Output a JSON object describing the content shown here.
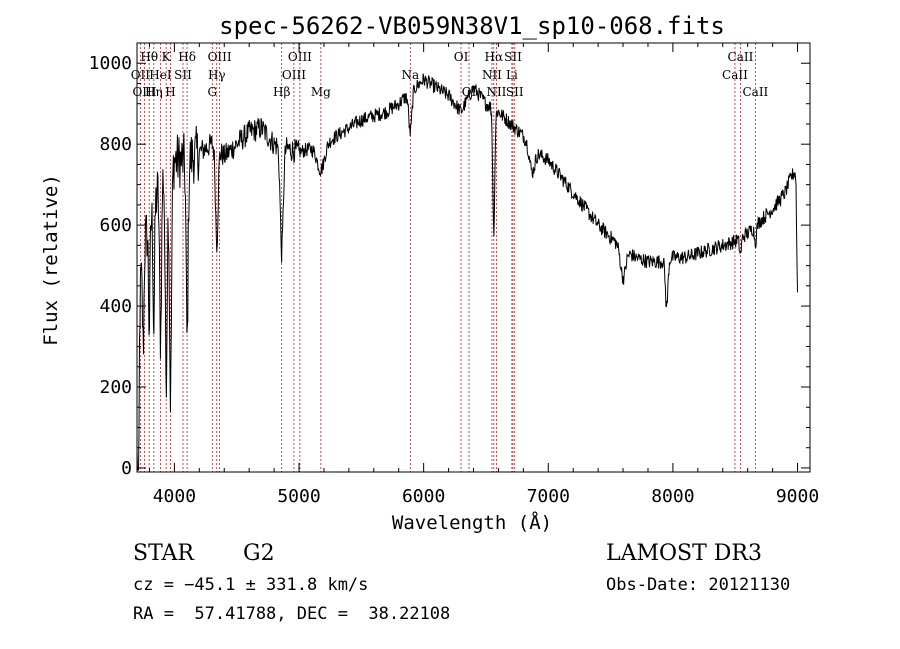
{
  "chart_data": {
    "type": "line",
    "title": "spec-56262-VB059N38V1_sp10-068.fits",
    "xlabel": "Wavelength (Å)",
    "ylabel": "Flux (relative)",
    "xlim": [
      3700,
      9100
    ],
    "ylim": [
      -10,
      1050
    ],
    "x_ticks": [
      4000,
      5000,
      6000,
      7000,
      8000,
      9000
    ],
    "y_ticks": [
      0,
      200,
      400,
      600,
      800,
      1000
    ],
    "x_tick_labels": [
      "4000",
      "5000",
      "6000",
      "7000",
      "8000",
      "9000"
    ],
    "y_tick_labels": [
      "0",
      "200",
      "400",
      "600",
      "800",
      "1000"
    ],
    "continuum": {
      "x": [
        3700,
        3720,
        3760,
        3800,
        3850,
        3900,
        3950,
        4000,
        4100,
        4200,
        4300,
        4400,
        4500,
        4600,
        4700,
        4800,
        4900,
        5000,
        5100,
        5200,
        5300,
        5400,
        5500,
        5600,
        5700,
        5800,
        5900,
        6000,
        6100,
        6200,
        6300,
        6400,
        6500,
        6600,
        6700,
        6800,
        6900,
        7000,
        7100,
        7200,
        7300,
        7400,
        7500,
        7600,
        7700,
        7800,
        7900,
        8000,
        8100,
        8200,
        8300,
        8400,
        8500,
        8600,
        8700,
        8800,
        8900,
        8950,
        9000
      ],
      "y": [
        150,
        420,
        560,
        600,
        660,
        740,
        720,
        760,
        760,
        780,
        800,
        770,
        800,
        830,
        840,
        800,
        790,
        780,
        790,
        800,
        820,
        840,
        860,
        870,
        880,
        900,
        930,
        960,
        940,
        920,
        880,
        940,
        900,
        880,
        850,
        820,
        780,
        760,
        720,
        680,
        640,
        600,
        570,
        540,
        520,
        510,
        510,
        520,
        520,
        530,
        540,
        550,
        560,
        580,
        610,
        640,
        680,
        720,
        740
      ]
    },
    "absorption": [
      {
        "x": 3710,
        "depth": 500,
        "width": 6
      },
      {
        "x": 3750,
        "depth": 220,
        "width": 6
      },
      {
        "x": 3798,
        "depth": 250,
        "width": 6
      },
      {
        "x": 3835,
        "depth": 300,
        "width": 6
      },
      {
        "x": 3889,
        "depth": 400,
        "width": 8
      },
      {
        "x": 3934,
        "depth": 500,
        "width": 8
      },
      {
        "x": 3969,
        "depth": 560,
        "width": 8
      },
      {
        "x": 4102,
        "depth": 450,
        "width": 8
      },
      {
        "x": 4340,
        "depth": 230,
        "width": 10
      },
      {
        "x": 4861,
        "depth": 260,
        "width": 12
      },
      {
        "x": 5175,
        "depth": 60,
        "width": 30
      },
      {
        "x": 5893,
        "depth": 100,
        "width": 12
      },
      {
        "x": 6563,
        "depth": 300,
        "width": 8
      },
      {
        "x": 6870,
        "depth": 60,
        "width": 20
      },
      {
        "x": 7600,
        "depth": 70,
        "width": 20
      },
      {
        "x": 7950,
        "depth": 120,
        "width": 10
      },
      {
        "x": 8542,
        "depth": 40,
        "width": 8
      },
      {
        "x": 8662,
        "depth": 40,
        "width": 8
      },
      {
        "x": 9000,
        "depth": 300,
        "width": 6
      }
    ],
    "lines": [
      {
        "label": "Hθ",
        "x": 3798,
        "row": 0
      },
      {
        "label": "OII",
        "x": 3727,
        "row": 1
      },
      {
        "label": "OIII",
        "x": 3760,
        "row": 2
      },
      {
        "label": "K",
        "x": 3934,
        "row": 0
      },
      {
        "label": "HeI",
        "x": 3888,
        "row": 1
      },
      {
        "label": "Hη",
        "x": 3835,
        "row": 2
      },
      {
        "label": "H",
        "x": 3969,
        "row": 2
      },
      {
        "label": "SII",
        "x": 4069,
        "row": 1
      },
      {
        "label": "Hδ",
        "x": 4102,
        "row": 0
      },
      {
        "label": "OIII",
        "x": 4363,
        "row": 0
      },
      {
        "label": "Hγ",
        "x": 4340,
        "row": 1
      },
      {
        "label": "G",
        "x": 4304,
        "row": 2
      },
      {
        "label": "Hβ",
        "x": 4861,
        "row": 2
      },
      {
        "label": "OIII",
        "x": 5007,
        "row": 0
      },
      {
        "label": "OIII",
        "x": 4959,
        "row": 1
      },
      {
        "label": "Mg",
        "x": 5175,
        "row": 2
      },
      {
        "label": "Na",
        "x": 5893,
        "row": 1
      },
      {
        "label": "OI",
        "x": 6300,
        "row": 0
      },
      {
        "label": "OI",
        "x": 6364,
        "row": 2
      },
      {
        "label": "Hα",
        "x": 6563,
        "row": 0
      },
      {
        "label": "SII",
        "x": 6717,
        "row": 0
      },
      {
        "label": "NII",
        "x": 6548,
        "row": 1
      },
      {
        "label": "Li",
        "x": 6708,
        "row": 1
      },
      {
        "label": "NII",
        "x": 6584,
        "row": 2
      },
      {
        "label": "SII",
        "x": 6731,
        "row": 2
      },
      {
        "label": "CaII",
        "x": 8542,
        "row": 0
      },
      {
        "label": "CaII",
        "x": 8498,
        "row": 1
      },
      {
        "label": "CaII",
        "x": 8662,
        "row": 2
      }
    ]
  },
  "info": {
    "class": "STAR",
    "subclass": "G2",
    "survey": "LAMOST DR3",
    "cz": "cz = −45.1 ± 331.8 km/s",
    "obs_date": "Obs-Date: 20121130",
    "coords": "RA =  57.41788, DEC =  38.22108"
  }
}
